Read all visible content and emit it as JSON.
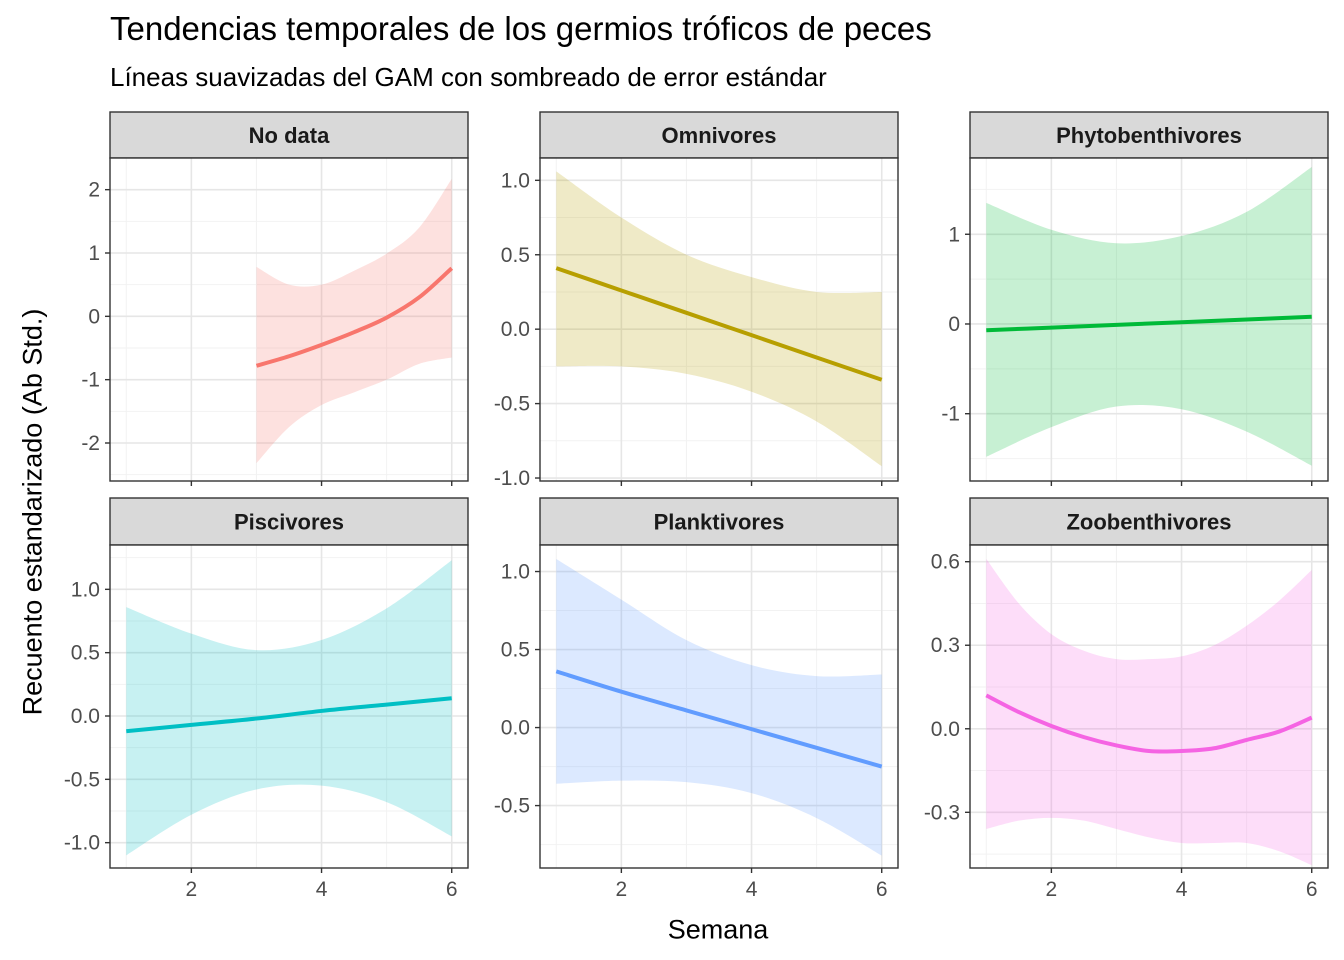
{
  "title": "Tendencias temporales de los germios tróficos de peces",
  "subtitle": "Líneas suavizadas del GAM con sombreado de error estándar",
  "chart_data": {
    "type": "line",
    "xlabel": "Semana",
    "ylabel": "Recuento estandarizado (Ab Std.)",
    "grid": true,
    "facets": [
      {
        "name": "No data",
        "color": "#F8766D",
        "ylim": [
          -2.6,
          2.5
        ],
        "yticks": [
          -2,
          -1,
          0,
          1,
          2
        ],
        "ytick_labels": [
          "-2",
          "-1",
          "0",
          "1",
          "2"
        ],
        "x": [
          3,
          3.5,
          4,
          4.5,
          5,
          5.5,
          6
        ],
        "fit": [
          -0.78,
          -0.63,
          -0.45,
          -0.25,
          -0.02,
          0.3,
          0.76
        ],
        "lower": [
          -2.32,
          -1.75,
          -1.4,
          -1.2,
          -1.0,
          -0.75,
          -0.65
        ],
        "upper": [
          0.78,
          0.5,
          0.5,
          0.72,
          0.99,
          1.4,
          2.17
        ]
      },
      {
        "name": "Omnivores",
        "color": "#B79F00",
        "ylim": [
          -1.02,
          1.15
        ],
        "yticks": [
          -1.0,
          -0.5,
          0.0,
          0.5,
          1.0
        ],
        "ytick_labels": [
          "-1.0",
          "-0.5",
          "0.0",
          "0.5",
          "1.0"
        ],
        "x": [
          1,
          2,
          3,
          4,
          5,
          6
        ],
        "fit": [
          0.41,
          0.26,
          0.11,
          -0.04,
          -0.19,
          -0.34
        ],
        "lower": [
          -0.25,
          -0.25,
          -0.3,
          -0.42,
          -0.62,
          -0.92
        ],
        "upper": [
          1.06,
          0.75,
          0.5,
          0.35,
          0.25,
          0.25
        ]
      },
      {
        "name": "Phytobenthivores",
        "color": "#00BA38",
        "ylim": [
          -1.75,
          1.85
        ],
        "yticks": [
          -1,
          0,
          1
        ],
        "ytick_labels": [
          "-1",
          "0",
          "1"
        ],
        "x": [
          1,
          2,
          3,
          4,
          5,
          6
        ],
        "fit": [
          -0.07,
          -0.04,
          -0.01,
          0.02,
          0.05,
          0.08
        ],
        "lower": [
          -1.48,
          -1.15,
          -0.92,
          -0.95,
          -1.2,
          -1.58
        ],
        "upper": [
          1.35,
          1.05,
          0.9,
          0.98,
          1.25,
          1.75
        ]
      },
      {
        "name": "Piscivores",
        "color": "#00BFC4",
        "ylim": [
          -1.2,
          1.35
        ],
        "yticks": [
          -1.0,
          -0.5,
          0.0,
          0.5,
          1.0
        ],
        "ytick_labels": [
          "-1.0",
          "-0.5",
          "0.0",
          "0.5",
          "1.0"
        ],
        "x": [
          1,
          2,
          3,
          4,
          5,
          6
        ],
        "fit": [
          -0.12,
          -0.07,
          -0.02,
          0.04,
          0.09,
          0.14
        ],
        "lower": [
          -1.1,
          -0.78,
          -0.58,
          -0.55,
          -0.68,
          -0.95
        ],
        "upper": [
          0.86,
          0.65,
          0.52,
          0.6,
          0.85,
          1.23
        ]
      },
      {
        "name": "Planktivores",
        "color": "#619CFF",
        "ylim": [
          -0.9,
          1.17
        ],
        "yticks": [
          -0.5,
          0.0,
          0.5,
          1.0
        ],
        "ytick_labels": [
          "-0.5",
          "0.0",
          "0.5",
          "1.0"
        ],
        "x": [
          1,
          2,
          3,
          4,
          5,
          6
        ],
        "fit": [
          0.36,
          0.23,
          0.11,
          -0.01,
          -0.13,
          -0.25
        ],
        "lower": [
          -0.36,
          -0.34,
          -0.35,
          -0.42,
          -0.58,
          -0.82
        ],
        "upper": [
          1.08,
          0.82,
          0.56,
          0.4,
          0.33,
          0.34
        ]
      },
      {
        "name": "Zoobenthivores",
        "color": "#F564E3",
        "ylim": [
          -0.5,
          0.66
        ],
        "yticks": [
          -0.3,
          0.0,
          0.3,
          0.6
        ],
        "ytick_labels": [
          "-0.3",
          "0.0",
          "0.3",
          "0.6"
        ],
        "x": [
          1,
          1.5,
          2,
          2.5,
          3,
          3.5,
          4,
          4.5,
          5,
          5.5,
          6
        ],
        "fit": [
          0.12,
          0.06,
          0.01,
          -0.03,
          -0.06,
          -0.08,
          -0.08,
          -0.07,
          -0.04,
          -0.01,
          0.04
        ],
        "lower": [
          -0.36,
          -0.33,
          -0.32,
          -0.33,
          -0.36,
          -0.39,
          -0.41,
          -0.41,
          -0.41,
          -0.44,
          -0.49
        ],
        "upper": [
          0.61,
          0.45,
          0.34,
          0.28,
          0.25,
          0.25,
          0.26,
          0.3,
          0.37,
          0.46,
          0.57
        ]
      }
    ],
    "xlim": [
      0.75,
      6.25
    ],
    "xticks": [
      2,
      4,
      6
    ],
    "xtick_labels": [
      "2",
      "4",
      "6"
    ]
  }
}
